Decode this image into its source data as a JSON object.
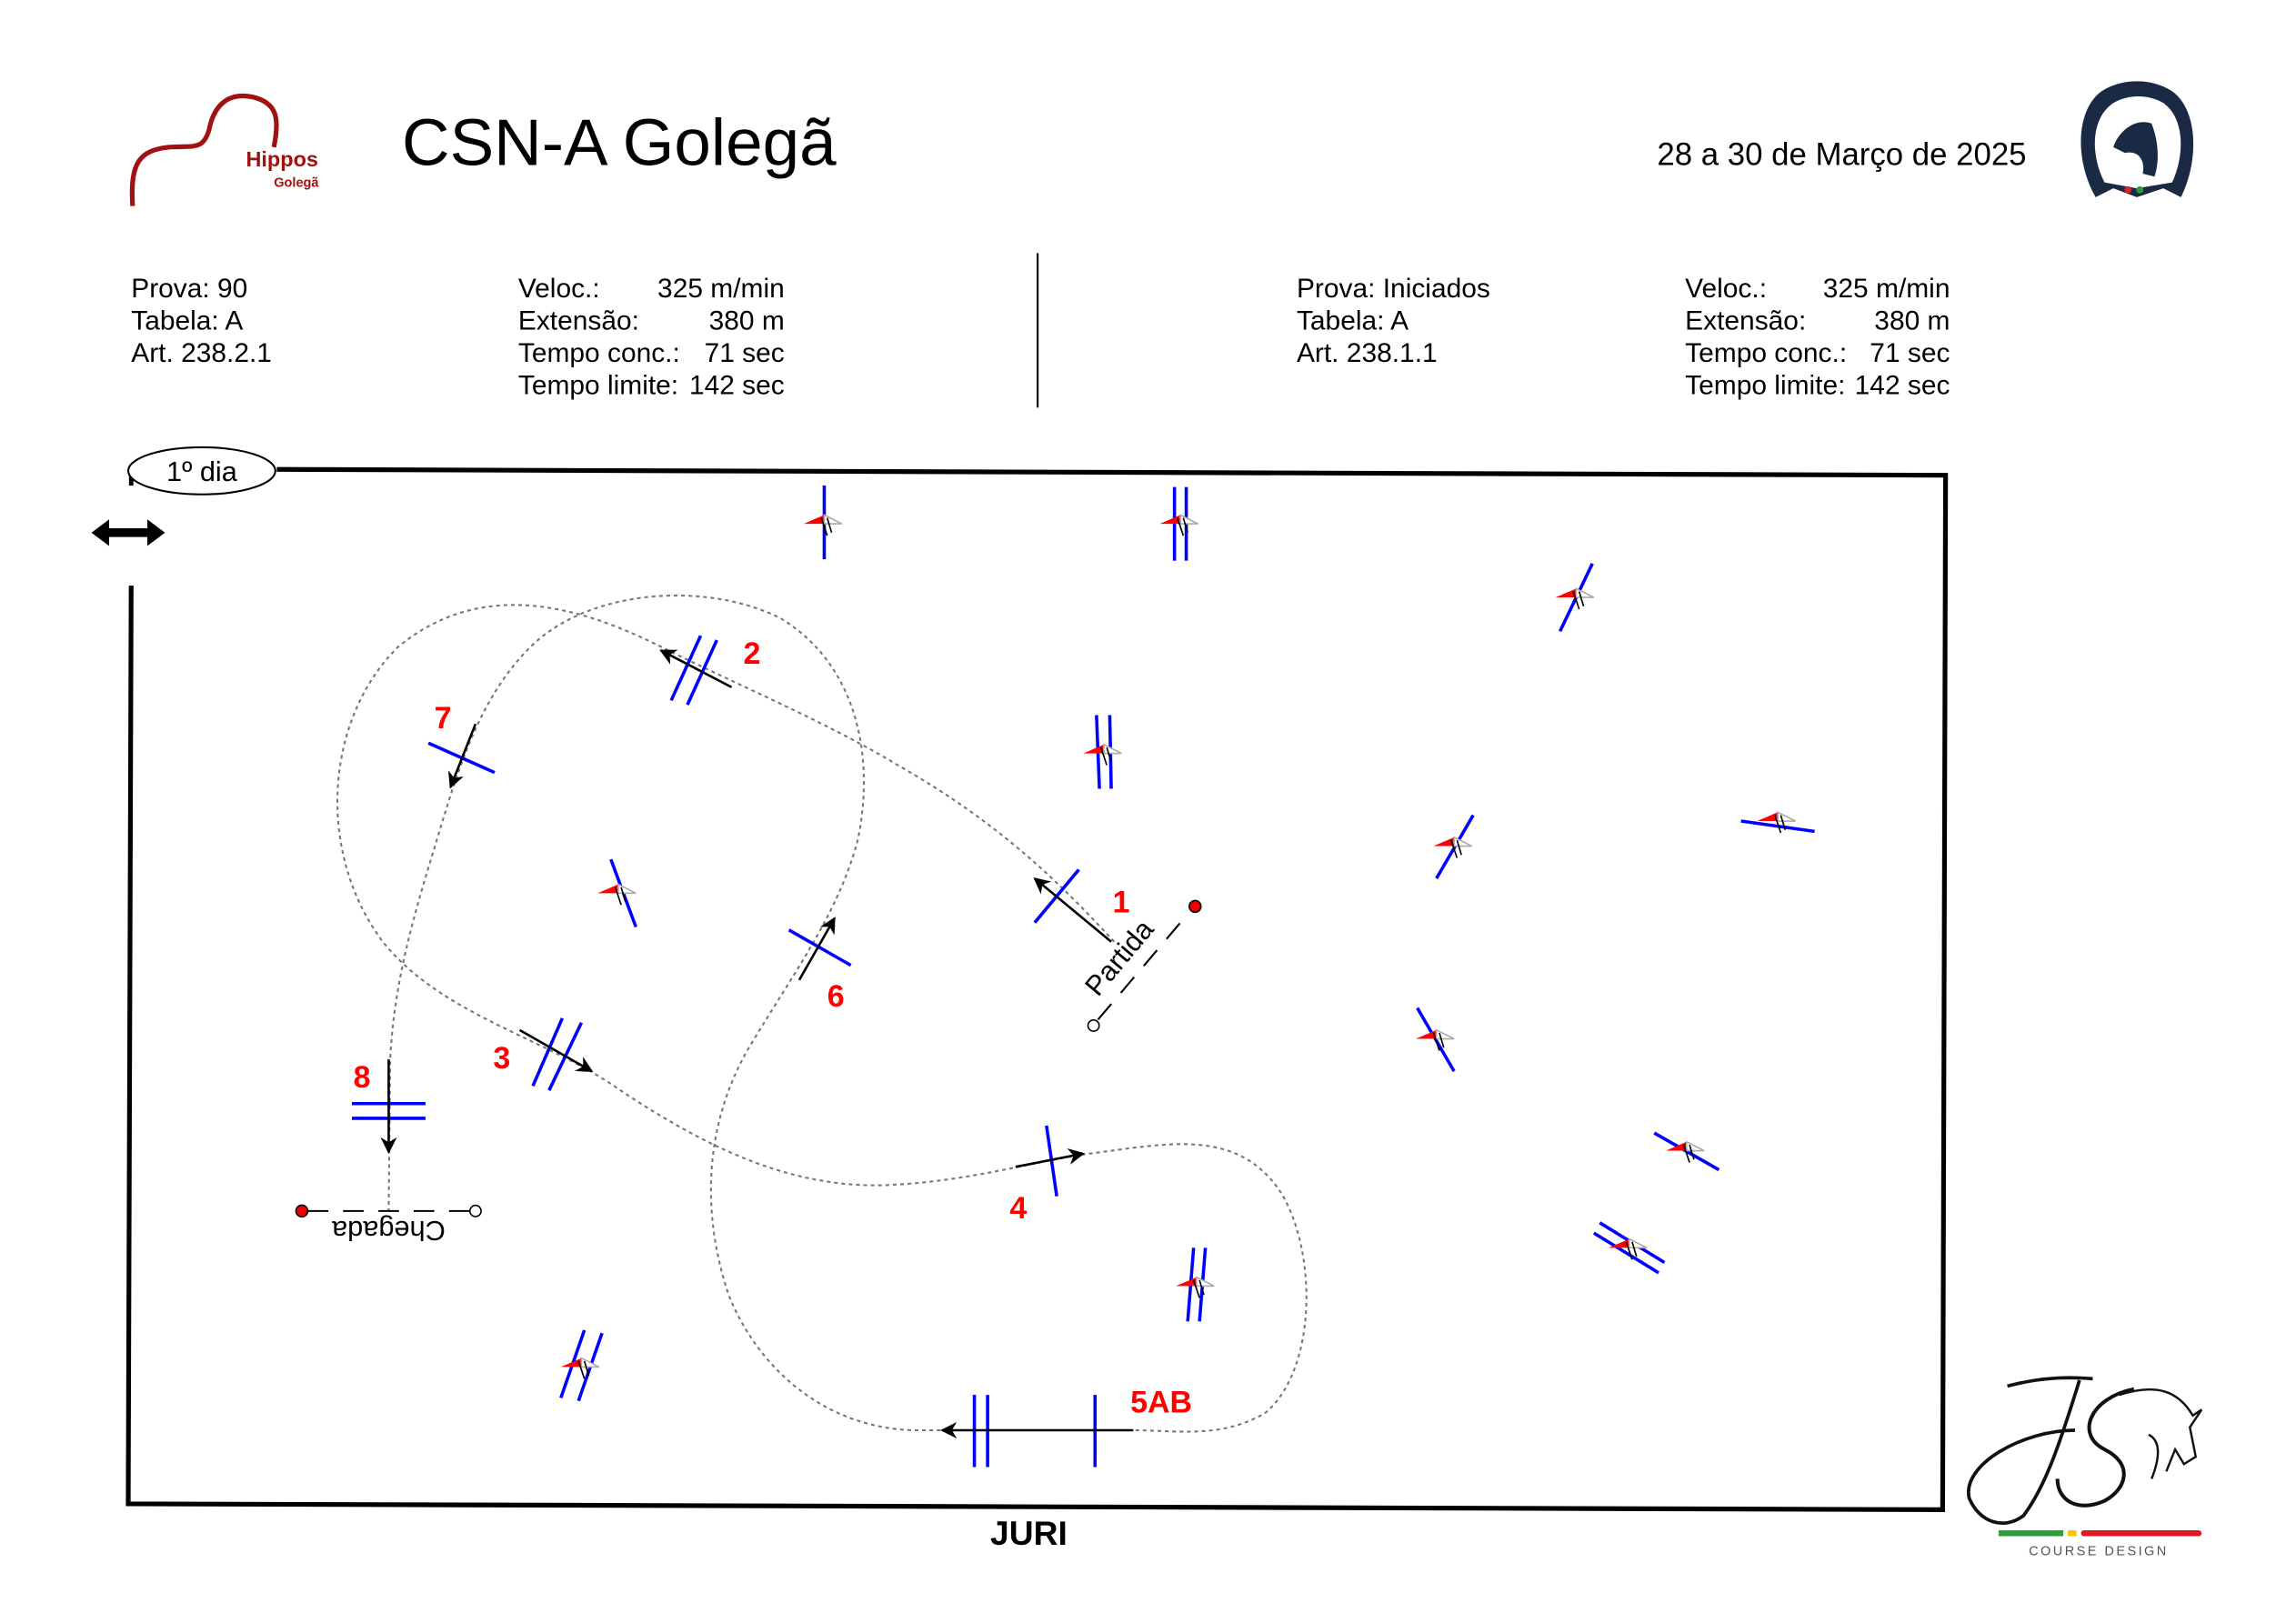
{
  "header": {
    "title": "CSN-A Golegã",
    "date": "28 a 30 de Março de 2025",
    "logo_left": {
      "main": "Hippos",
      "sub": "Golegã"
    },
    "logo_right": "FEDERAÇÃO EQUESTRE PORTUGUESA",
    "logo_designer": {
      "mark": "JS",
      "caption": "COURSE DESIGN"
    }
  },
  "class_left": {
    "prova": "Prova: 90",
    "tabela": "Tabela: A",
    "art": "Art. 238.2.1",
    "veloc_label": "Veloc.:",
    "veloc_value": "325 m/min",
    "ext_label": "Extensão:",
    "ext_value": "380 m",
    "tconc_label": "Tempo conc.:",
    "tconc_value": "71 sec",
    "tlim_label": "Tempo limite:",
    "tlim_value": "142 sec"
  },
  "class_right": {
    "prova": "Prova: Iniciados",
    "tabela": "Tabela: A",
    "art": "Art. 238.1.1",
    "veloc_label": "Veloc.:",
    "veloc_value": "325 m/min",
    "ext_label": "Extensão:",
    "ext_value": "380 m",
    "tconc_label": "Tempo conc.:",
    "tconc_value": "71 sec",
    "tlim_label": "Tempo limite:",
    "tlim_value": "142 sec"
  },
  "arena": {
    "day_badge": "1º dia",
    "start_label": "Partida",
    "finish_label": "Chegada",
    "jury_label": "JURI",
    "fences": [
      "1",
      "2",
      "3",
      "4",
      "5AB",
      "6",
      "7",
      "8"
    ]
  },
  "colors": {
    "fence": "#0000ff",
    "number": "#ff0000",
    "track": "#777777",
    "hippos": "#a0110f",
    "fep": "#1b2a44"
  }
}
